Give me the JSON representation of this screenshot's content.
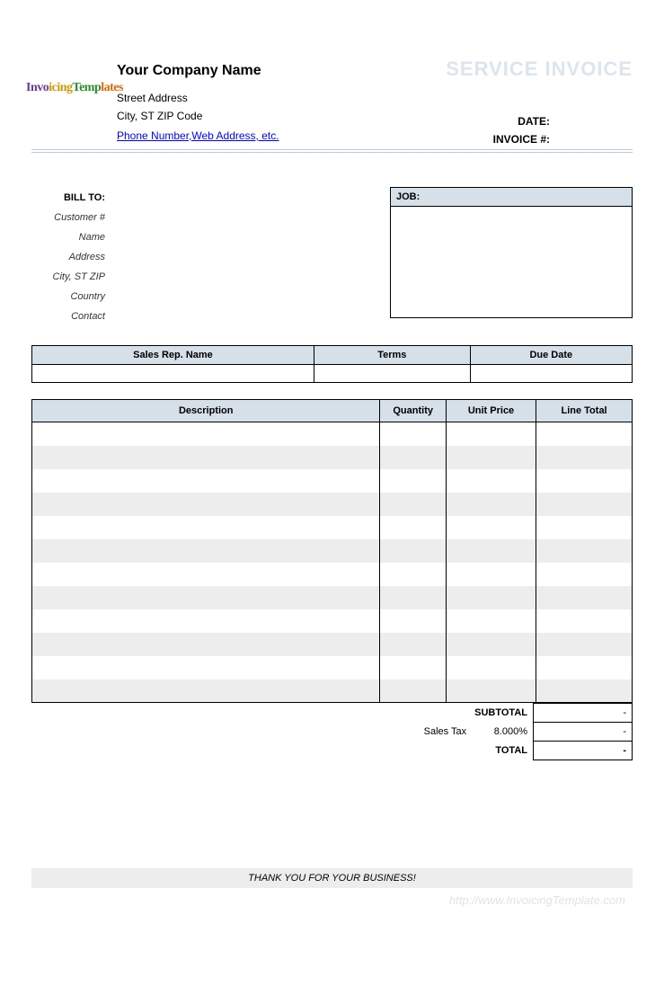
{
  "header": {
    "company_name": "Your Company Name",
    "street": "Street Address",
    "city_line": "City, ST  ZIP Code",
    "contact_link": "Phone Number,Web Address, etc.",
    "doc_title": "SERVICE INVOICE",
    "date_label": "DATE:",
    "invoice_no_label": "INVOICE #:",
    "logo_text": "InvoicingTemplates"
  },
  "billto": {
    "heading": "BILL TO:",
    "labels": [
      "Customer #",
      "Name",
      "Address",
      "City, ST ZIP",
      "Country",
      "Contact"
    ]
  },
  "job": {
    "heading": "JOB:"
  },
  "info_table": {
    "headers": [
      "Sales Rep. Name",
      "Terms",
      "Due Date"
    ],
    "widths_pct": [
      47,
      26,
      27
    ]
  },
  "items_table": {
    "headers": [
      "Description",
      "Quantity",
      "Unit Price",
      "Line Total"
    ],
    "row_count": 12,
    "stripe_color": "#ededed",
    "header_bg": "#d6e0e8"
  },
  "totals": {
    "subtotal_label": "SUBTOTAL",
    "subtotal_value": "-",
    "tax_label": "Sales Tax",
    "tax_rate": "8.000%",
    "tax_value": "-",
    "total_label": "TOTAL",
    "total_value": "-"
  },
  "footer": {
    "thanks": "THANK YOU FOR YOUR BUSINESS!",
    "watermark": "http://www.InvoicingTemplate.com"
  },
  "colors": {
    "header_bg": "#d6e0e8",
    "stripe": "#ededed",
    "title_faded": "#dbe5ed",
    "divider": "#b8cbd7",
    "link": "#0000ee"
  }
}
